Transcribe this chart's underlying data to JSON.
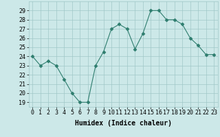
{
  "x": [
    0,
    1,
    2,
    3,
    4,
    5,
    6,
    7,
    8,
    9,
    10,
    11,
    12,
    13,
    14,
    15,
    16,
    17,
    18,
    19,
    20,
    21,
    22,
    23
  ],
  "y": [
    24,
    23,
    23.5,
    23,
    21.5,
    20,
    19,
    19,
    23,
    24.5,
    27,
    27.5,
    27,
    24.8,
    26.5,
    29,
    29,
    28,
    28,
    27.5,
    26,
    25.2,
    24.2,
    24.2
  ],
  "xlabel": "Humidex (Indice chaleur)",
  "ylim": [
    18.5,
    30
  ],
  "yticks": [
    19,
    20,
    21,
    22,
    23,
    24,
    25,
    26,
    27,
    28,
    29
  ],
  "xtick_labels": [
    "0",
    "1",
    "2",
    "3",
    "4",
    "5",
    "6",
    "7",
    "8",
    "9",
    "10",
    "11",
    "12",
    "13",
    "14",
    "15",
    "16",
    "17",
    "18",
    "19",
    "20",
    "21",
    "22",
    "23"
  ],
  "line_color": "#2e7d6e",
  "marker": "D",
  "marker_size": 2.5,
  "bg_color": "#cce8e8",
  "grid_color": "#a0c8c8",
  "font_family": "monospace",
  "tick_fontsize": 6,
  "xlabel_fontsize": 7
}
